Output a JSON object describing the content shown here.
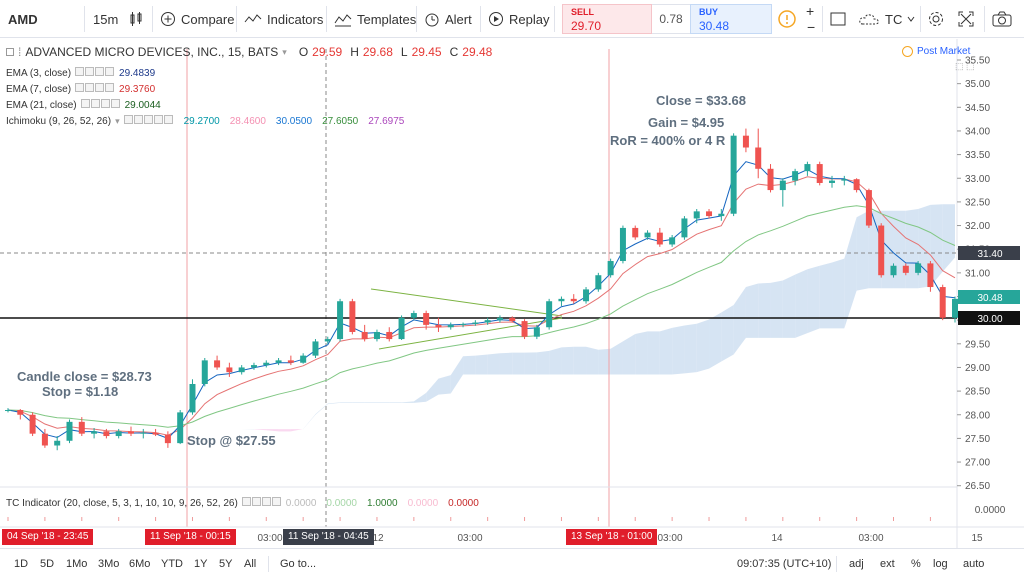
{
  "toolbar": {
    "symbol": "AMD",
    "interval": "15m",
    "compare": "Compare",
    "indicators": "Indicators",
    "templates": "Templates",
    "alert": "Alert",
    "replay": "Replay",
    "sell_label": "SELL",
    "sell_price": "29.70",
    "spread": "0.78",
    "buy_label": "BUY",
    "buy_price": "30.48",
    "tc_label": "TC"
  },
  "legend": {
    "title": "ADVANCED MICRO DEVICES, INC., 15, BATS",
    "o_label": "O",
    "o_val": "29.59",
    "h_label": "H",
    "h_val": "29.68",
    "l_label": "L",
    "l_val": "29.45",
    "c_label": "C",
    "c_val": "29.48",
    "ema3": "EMA (3, close)",
    "ema3_val": "29.4839",
    "ema7": "EMA (7, close)",
    "ema7_val": "29.3760",
    "ema21": "EMA (21, close)",
    "ema21_val": "29.0044",
    "ichimoku": "Ichimoku (9, 26, 52, 26)",
    "ichi_vals": [
      "29.2700",
      "28.4600",
      "30.0500",
      "27.6050",
      "27.6975"
    ],
    "post_market": "Post Market"
  },
  "annotations": {
    "close": "Close = $33.68",
    "gain": "Gain = $4.95",
    "ror": "RoR = 400% or 4 R",
    "candle_close": "Candle close = $28.73",
    "stop": "Stop = $1.18",
    "stop_at": "Stop @ $27.55"
  },
  "indicator_pane": {
    "label": "TC Indicator (20, close, 5, 3, 1, 10, 10, 9, 26, 52, 26)",
    "vals": [
      "0.0000",
      "0.0000",
      "1.0000",
      "0.0000",
      "0.0000"
    ],
    "axis_value": "0.0000"
  },
  "price_axis": {
    "ticks": [
      "35.50",
      "35.00",
      "34.50",
      "34.00",
      "33.50",
      "33.00",
      "32.50",
      "32.00",
      "31.50",
      "31.00",
      "30.50",
      "30.00",
      "29.50",
      "29.00",
      "28.50",
      "28.00",
      "27.50",
      "27.00",
      "26.50"
    ],
    "badge_3140": "31.40",
    "badge_3048": "30.48",
    "badge_3000": "30.00"
  },
  "time_axis": {
    "ticks": [
      "03:00",
      "12",
      "03:00",
      "03:00",
      "14",
      "03:00",
      "15"
    ],
    "badge_1": "04 Sep '18 - 23:45",
    "badge_2": "11 Sep '18 - 00:15",
    "badge_3": "11 Sep '18 - 04:45",
    "badge_4": "13 Sep '18 - 01:00"
  },
  "bottombar": {
    "ranges": [
      "1D",
      "5D",
      "1Mo",
      "3Mo",
      "6Mo",
      "YTD",
      "1Y",
      "5Y",
      "All"
    ],
    "goto": "Go to...",
    "clock": "09:07:35 (UTC+10)",
    "adj": "adj",
    "ext": "ext",
    "pct": "%",
    "log": "log",
    "auto": "auto"
  },
  "colors": {
    "up": "#26a69a",
    "down": "#ef5350",
    "ema3": "#d32f2f",
    "ema21": "#388e3c",
    "cloud_bull": "#c5d8ee",
    "cloud_bear": "#f8c8ea"
  },
  "chart_data": {
    "type": "candlestick",
    "symbol": "AMD",
    "interval": "15m",
    "ylim": [
      26.25,
      35.75
    ],
    "candles": [
      [
        28.1,
        28.14,
        28.05,
        28.1
      ],
      [
        28.1,
        28.12,
        27.9,
        28.0
      ],
      [
        28.0,
        28.05,
        27.55,
        27.6
      ],
      [
        27.6,
        27.7,
        27.3,
        27.35
      ],
      [
        27.35,
        27.55,
        27.25,
        27.45
      ],
      [
        27.45,
        27.9,
        27.4,
        27.85
      ],
      [
        27.85,
        27.95,
        27.55,
        27.6
      ],
      [
        27.6,
        27.72,
        27.5,
        27.65
      ],
      [
        27.65,
        27.7,
        27.5,
        27.55
      ],
      [
        27.55,
        27.7,
        27.5,
        27.65
      ],
      [
        27.65,
        27.75,
        27.55,
        27.6
      ],
      [
        27.6,
        27.7,
        27.5,
        27.62
      ],
      [
        27.62,
        27.7,
        27.55,
        27.58
      ],
      [
        27.58,
        27.65,
        27.3,
        27.4
      ],
      [
        27.4,
        28.1,
        27.38,
        28.05
      ],
      [
        28.05,
        28.75,
        28.0,
        28.65
      ],
      [
        28.65,
        29.2,
        28.6,
        29.15
      ],
      [
        29.15,
        29.25,
        28.95,
        29.0
      ],
      [
        29.0,
        29.1,
        28.8,
        28.9
      ],
      [
        28.9,
        29.05,
        28.85,
        29.0
      ],
      [
        29.0,
        29.1,
        28.95,
        29.05
      ],
      [
        29.05,
        29.15,
        29.0,
        29.1
      ],
      [
        29.1,
        29.2,
        29.05,
        29.15
      ],
      [
        29.15,
        29.25,
        29.05,
        29.1
      ],
      [
        29.1,
        29.3,
        29.08,
        29.25
      ],
      [
        29.25,
        29.6,
        29.2,
        29.55
      ],
      [
        29.55,
        29.65,
        29.5,
        29.6
      ],
      [
        29.6,
        30.45,
        29.55,
        30.4
      ],
      [
        30.4,
        30.45,
        29.7,
        29.75
      ],
      [
        29.75,
        29.9,
        29.55,
        29.6
      ],
      [
        29.6,
        29.8,
        29.55,
        29.75
      ],
      [
        29.75,
        29.85,
        29.55,
        29.6
      ],
      [
        29.6,
        30.1,
        29.58,
        30.05
      ],
      [
        30.05,
        30.2,
        30.0,
        30.15
      ],
      [
        30.15,
        30.2,
        29.8,
        29.9
      ],
      [
        29.9,
        30.05,
        29.75,
        29.85
      ],
      [
        29.85,
        29.95,
        29.8,
        29.9
      ],
      [
        29.9,
        29.95,
        29.85,
        29.92
      ],
      [
        29.92,
        30.0,
        29.88,
        29.95
      ],
      [
        29.95,
        30.05,
        29.9,
        30.0
      ],
      [
        30.0,
        30.1,
        29.95,
        30.05
      ],
      [
        30.05,
        30.08,
        29.95,
        29.98
      ],
      [
        29.98,
        30.02,
        29.6,
        29.65
      ],
      [
        29.65,
        29.9,
        29.6,
        29.85
      ],
      [
        29.85,
        30.45,
        29.8,
        30.4
      ],
      [
        30.4,
        30.5,
        30.3,
        30.45
      ],
      [
        30.45,
        30.55,
        30.35,
        30.4
      ],
      [
        30.4,
        30.7,
        30.35,
        30.65
      ],
      [
        30.65,
        31.0,
        30.6,
        30.95
      ],
      [
        30.95,
        31.3,
        30.9,
        31.25
      ],
      [
        31.25,
        32.0,
        31.2,
        31.95
      ],
      [
        31.95,
        32.0,
        31.7,
        31.75
      ],
      [
        31.75,
        31.9,
        31.7,
        31.85
      ],
      [
        31.85,
        31.95,
        31.55,
        31.6
      ],
      [
        31.6,
        31.8,
        31.55,
        31.75
      ],
      [
        31.75,
        32.2,
        31.7,
        32.15
      ],
      [
        32.15,
        32.35,
        32.05,
        32.3
      ],
      [
        32.3,
        32.35,
        32.15,
        32.2
      ],
      [
        32.2,
        32.35,
        32.1,
        32.25
      ],
      [
        32.25,
        33.95,
        32.2,
        33.9
      ],
      [
        33.9,
        34.05,
        33.55,
        33.65
      ],
      [
        33.65,
        34.05,
        33.0,
        33.2
      ],
      [
        33.2,
        33.3,
        32.7,
        32.75
      ],
      [
        32.75,
        33.0,
        32.4,
        32.95
      ],
      [
        32.95,
        33.2,
        32.85,
        33.15
      ],
      [
        33.15,
        33.35,
        33.05,
        33.3
      ],
      [
        33.3,
        33.35,
        32.85,
        32.9
      ],
      [
        32.9,
        33.05,
        32.8,
        32.95
      ],
      [
        32.95,
        33.05,
        32.85,
        32.98
      ],
      [
        32.98,
        33.0,
        32.7,
        32.75
      ],
      [
        32.75,
        32.78,
        31.95,
        32.0
      ],
      [
        32.0,
        32.05,
        30.9,
        30.95
      ],
      [
        30.95,
        31.2,
        30.9,
        31.15
      ],
      [
        31.15,
        31.2,
        30.95,
        31.0
      ],
      [
        31.0,
        31.25,
        30.95,
        31.2
      ],
      [
        31.2,
        31.25,
        30.6,
        30.7
      ],
      [
        30.7,
        30.75,
        30.0,
        30.05
      ],
      [
        30.05,
        30.5,
        29.95,
        30.45
      ]
    ],
    "title": "ADVANCED MICRO DEVICES, INC., 15, BATS",
    "horizontal_lines": [
      30.0,
      31.4
    ],
    "trendlines": "symmetrical triangle between ~11 Sep 18:00 and ~13 Sep 00:00"
  }
}
